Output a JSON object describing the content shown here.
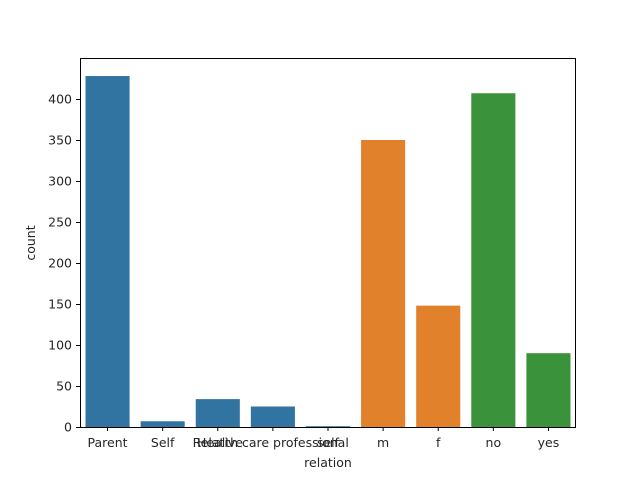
{
  "chart_data": {
    "type": "bar",
    "xlabel": "relation",
    "ylabel": "count",
    "ylim": [
      0,
      450
    ],
    "yticks": [
      0,
      50,
      100,
      150,
      200,
      250,
      300,
      350,
      400
    ],
    "grid": false,
    "legend": "none",
    "categories": [
      "Parent",
      "Self",
      "Relative",
      "Health care professional",
      "self",
      "m",
      "f",
      "no",
      "yes"
    ],
    "values": [
      428,
      7,
      34,
      25,
      1,
      350,
      148,
      407,
      90
    ],
    "bar_colors": [
      "#3274a1",
      "#3274a1",
      "#3274a1",
      "#3274a1",
      "#3274a1",
      "#e1812c",
      "#e1812c",
      "#3a923a",
      "#3a923a"
    ]
  }
}
